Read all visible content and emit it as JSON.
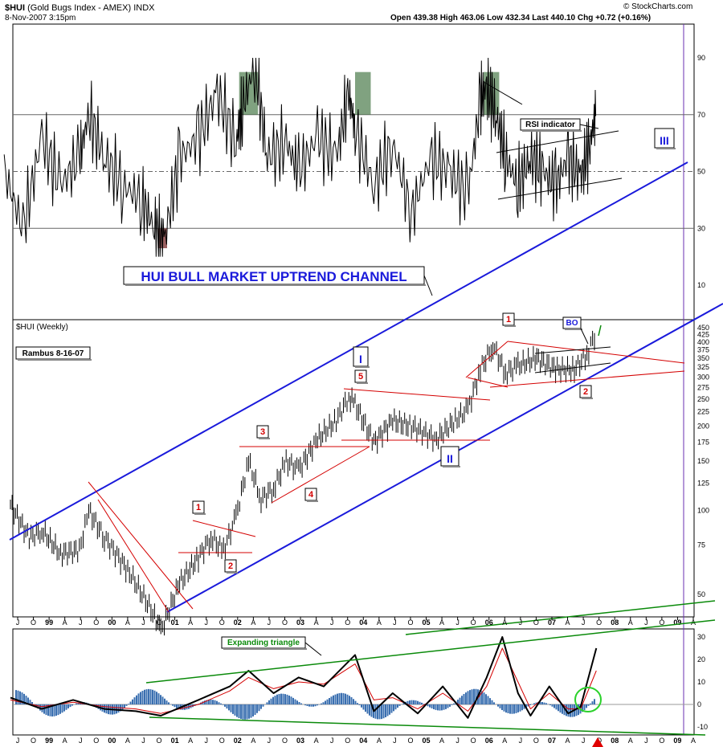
{
  "header": {
    "symbol": "$HUI",
    "name": "(Gold Bugs Index - AMEX)",
    "exchange": "INDX",
    "datetime": "8-Nov-2007 3:15pm",
    "quote": "Open 439.38  High 463.06  Low 432.34  Last 440.10  Chg +0.72 (+0.16%)",
    "watermark": "© StockCharts.com"
  },
  "colors": {
    "channel": "#1a1adb",
    "pattern": "#d40000",
    "green": "#0a8a0a",
    "rsi_fill": "#4a7a4a",
    "macd_hist": "#3a6fb0",
    "vline": "#6a2fb0"
  },
  "chart_data": [
    {
      "type": "line",
      "panel": "RSI",
      "y_ticks": [
        90,
        70,
        50,
        30,
        10
      ],
      "ylim": [
        0,
        100
      ],
      "reference_lines": [
        70,
        50,
        30
      ],
      "annotations": [
        "RSI indicator",
        "III",
        "HUI BULL MARKET UPTREND CHANNEL"
      ],
      "series": [
        {
          "name": "",
          "x": [
            1998.4,
            1998.7,
            1999.0,
            1999.3,
            1999.6,
            1999.75,
            2000.0,
            2000.3,
            2000.6,
            2000.8,
            2000.95,
            2001.2,
            2001.5,
            2001.8,
            2002.1,
            2002.2,
            2002.4,
            2002.6,
            2002.9,
            2003.1,
            2003.4,
            2003.7,
            2003.9,
            2004.0,
            2004.3,
            2004.6,
            2004.9,
            2005.2,
            2005.5,
            2005.8,
            2006.0,
            2006.1,
            2006.25,
            2006.4,
            2006.6,
            2006.8,
            2007.0,
            2007.2,
            2007.4,
            2007.6,
            2007.75,
            2007.85
          ],
          "y": [
            50,
            30,
            62,
            45,
            55,
            70,
            55,
            45,
            40,
            30,
            25,
            55,
            62,
            78,
            60,
            72,
            88,
            55,
            60,
            50,
            62,
            55,
            78,
            65,
            45,
            60,
            35,
            55,
            50,
            42,
            75,
            80,
            70,
            55,
            45,
            55,
            50,
            45,
            55,
            48,
            60,
            72
          ]
        }
      ]
    },
    {
      "type": "line",
      "panel": "$HUI (Weekly)",
      "scale": "log",
      "y_ticks": [
        450,
        425,
        400,
        375,
        350,
        325,
        300,
        275,
        250,
        225,
        200,
        175,
        150,
        125,
        100,
        75,
        50
      ],
      "x_ticks": [
        "J",
        "O",
        "99",
        "A",
        "J",
        "O",
        "00",
        "A",
        "J",
        "O",
        "01",
        "A",
        "J",
        "O",
        "02",
        "A",
        "J",
        "O",
        "03",
        "A",
        "J",
        "O",
        "04",
        "A",
        "J",
        "O",
        "05",
        "A",
        "J",
        "O",
        "06",
        "A",
        "J",
        "O",
        "07",
        "A",
        "J",
        "O",
        "08",
        "A",
        "J",
        "O",
        "09",
        "A"
      ],
      "annotations": [
        "Rambus 8-16-07",
        "1",
        "2",
        "3",
        "4",
        "5",
        "1",
        "2",
        "I",
        "II",
        "BO"
      ],
      "series": [
        {
          "name": "",
          "x": [
            1998.5,
            1998.8,
            1999.0,
            1999.3,
            1999.6,
            1999.75,
            2000.0,
            2000.4,
            2000.8,
            2000.9,
            2001.2,
            2001.5,
            2001.7,
            2001.9,
            2002.1,
            2002.3,
            2002.5,
            2002.7,
            2002.9,
            2003.1,
            2003.4,
            2003.7,
            2003.9,
            2004.0,
            2004.3,
            2004.6,
            2004.9,
            2005.3,
            2005.6,
            2005.8,
            2006.0,
            2006.2,
            2006.4,
            2006.6,
            2006.9,
            2007.2,
            2007.5,
            2007.7,
            2007.85
          ],
          "y": [
            105,
            80,
            85,
            70,
            72,
            100,
            80,
            60,
            42,
            37,
            55,
            68,
            80,
            72,
            95,
            150,
            110,
            120,
            150,
            140,
            180,
            210,
            255,
            240,
            175,
            210,
            200,
            180,
            210,
            230,
            320,
            390,
            310,
            330,
            350,
            320,
            320,
            360,
            440
          ]
        }
      ]
    },
    {
      "type": "line",
      "panel": "MACD",
      "y_ticks": [
        30,
        20,
        10,
        0,
        -10
      ],
      "ylim": [
        -12,
        32
      ],
      "annotations": [
        "Expanding triangle"
      ],
      "series": [
        {
          "name": "",
          "x": [
            1998.5,
            1999.0,
            1999.5,
            2000.0,
            2000.5,
            2000.9,
            2001.5,
            2002.0,
            2002.3,
            2002.7,
            2003.1,
            2003.5,
            2004.0,
            2004.3,
            2004.6,
            2005.0,
            2005.4,
            2005.8,
            2006.1,
            2006.35,
            2006.6,
            2006.8,
            2007.1,
            2007.4,
            2007.6,
            2007.85
          ],
          "y": [
            3,
            -2,
            2,
            -2,
            -3,
            -5,
            2,
            8,
            15,
            5,
            12,
            8,
            22,
            -3,
            5,
            -4,
            8,
            -6,
            12,
            30,
            5,
            -5,
            8,
            -4,
            -1,
            25
          ]
        },
        {
          "name": "",
          "x": [
            1998.5,
            1999.0,
            1999.5,
            2000.0,
            2000.5,
            2000.9,
            2001.5,
            2002.0,
            2002.3,
            2002.7,
            2003.1,
            2003.5,
            2004.0,
            2004.3,
            2004.6,
            2005.0,
            2005.4,
            2005.8,
            2006.1,
            2006.35,
            2006.6,
            2006.8,
            2007.1,
            2007.4,
            2007.6,
            2007.85
          ],
          "y": [
            2,
            -1,
            1,
            -1,
            -2,
            -4,
            0,
            6,
            12,
            7,
            10,
            9,
            18,
            2,
            3,
            -2,
            5,
            -3,
            8,
            25,
            10,
            -2,
            5,
            -2,
            -2,
            15
          ]
        }
      ]
    }
  ],
  "time_axis_labels": [
    "J",
    "O",
    "99",
    "A",
    "J",
    "O",
    "00",
    "A",
    "J",
    "O",
    "01",
    "A",
    "J",
    "O",
    "02",
    "A",
    "J",
    "O",
    "03",
    "A",
    "J",
    "O",
    "04",
    "A",
    "J",
    "O",
    "05",
    "A",
    "J",
    "O",
    "06",
    "A",
    "J",
    "O",
    "07",
    "A",
    "J",
    "O",
    "08",
    "A",
    "J",
    "O",
    "09",
    "A"
  ]
}
